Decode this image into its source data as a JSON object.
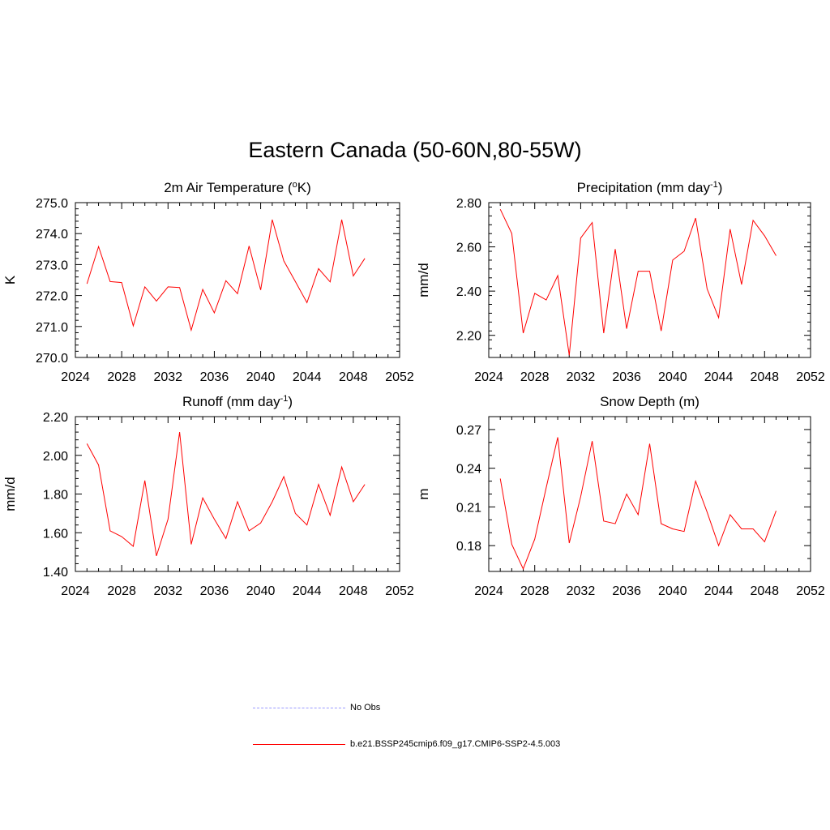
{
  "title": "Eastern Canada (50-60N,80-55W)",
  "series_color": "#ff0000",
  "legend": {
    "obs_label": "No Obs",
    "obs_color": "#9999ff",
    "model_label": "b.e21.BSSP245cmip6.f09_g17.CMIP6-SSP2-4.5.003",
    "model_color": "#ff0000"
  },
  "chart_data": [
    {
      "type": "line",
      "title": "2m Air Temperature (oK)",
      "title_parts": {
        "pre": "2m Air Temperature (",
        "sup": "o",
        "post": "K)"
      },
      "ylabel": "K",
      "xlim": [
        2024,
        2052
      ],
      "ylim": [
        270.0,
        275.0
      ],
      "xticks": [
        "2024",
        "2028",
        "2032",
        "2036",
        "2040",
        "2044",
        "2048",
        "2052"
      ],
      "yticks": [
        "270.0",
        "271.0",
        "272.0",
        "273.0",
        "274.0",
        "275.0"
      ],
      "ytick_values": [
        270,
        271,
        272,
        273,
        274,
        275
      ],
      "y_minor_step": 0.2,
      "x": [
        2025,
        2026,
        2027,
        2028,
        2029,
        2030,
        2031,
        2032,
        2033,
        2034,
        2035,
        2036,
        2037,
        2038,
        2039,
        2040,
        2041,
        2042,
        2043,
        2044,
        2045,
        2046,
        2047,
        2048,
        2049
      ],
      "series": [
        {
          "values": [
            272.38,
            273.58,
            272.45,
            272.42,
            271.02,
            272.28,
            271.82,
            272.28,
            272.26,
            270.88,
            272.2,
            271.44,
            272.48,
            272.06,
            273.6,
            272.18,
            274.45,
            273.12,
            272.45,
            271.77,
            272.87,
            272.44,
            274.45,
            272.63,
            273.2
          ]
        }
      ]
    },
    {
      "type": "line",
      "title": "Precipitation (mm day-1)",
      "title_parts": {
        "pre": "Precipitation (mm day",
        "sup": "-1",
        "post": ")"
      },
      "ylabel": "mm/d",
      "xlim": [
        2024,
        2052
      ],
      "ylim": [
        2.1,
        2.8
      ],
      "xticks": [
        "2024",
        "2028",
        "2032",
        "2036",
        "2040",
        "2044",
        "2048",
        "2052"
      ],
      "yticks": [
        "2.20",
        "2.40",
        "2.60",
        "2.80"
      ],
      "ytick_values": [
        2.2,
        2.4,
        2.6,
        2.8
      ],
      "y_minor_step": 0.04,
      "x": [
        2025,
        2026,
        2027,
        2028,
        2029,
        2030,
        2031,
        2032,
        2033,
        2034,
        2035,
        2036,
        2037,
        2038,
        2039,
        2040,
        2041,
        2042,
        2043,
        2044,
        2045,
        2046,
        2047,
        2048,
        2049
      ],
      "series": [
        {
          "values": [
            2.77,
            2.66,
            2.21,
            2.39,
            2.36,
            2.47,
            2.11,
            2.64,
            2.71,
            2.21,
            2.59,
            2.23,
            2.49,
            2.49,
            2.22,
            2.54,
            2.58,
            2.73,
            2.41,
            2.28,
            2.68,
            2.43,
            2.72,
            2.65,
            2.56
          ]
        }
      ]
    },
    {
      "type": "line",
      "title": "Runoff (mm day-1)",
      "title_parts": {
        "pre": "Runoff (mm day",
        "sup": "-1",
        "post": ")"
      },
      "ylabel": "mm/d",
      "xlim": [
        2024,
        2052
      ],
      "ylim": [
        1.4,
        2.2
      ],
      "xticks": [
        "2024",
        "2028",
        "2032",
        "2036",
        "2040",
        "2044",
        "2048",
        "2052"
      ],
      "yticks": [
        "1.40",
        "1.60",
        "1.80",
        "2.00",
        "2.20"
      ],
      "ytick_values": [
        1.4,
        1.6,
        1.8,
        2.0,
        2.2
      ],
      "y_minor_step": 0.04,
      "x": [
        2025,
        2026,
        2027,
        2028,
        2029,
        2030,
        2031,
        2032,
        2033,
        2034,
        2035,
        2036,
        2037,
        2038,
        2039,
        2040,
        2041,
        2042,
        2043,
        2044,
        2045,
        2046,
        2047,
        2048,
        2049
      ],
      "series": [
        {
          "values": [
            2.06,
            1.95,
            1.61,
            1.58,
            1.53,
            1.87,
            1.48,
            1.67,
            2.12,
            1.54,
            1.78,
            1.67,
            1.57,
            1.76,
            1.61,
            1.65,
            1.76,
            1.89,
            1.7,
            1.64,
            1.85,
            1.69,
            1.94,
            1.76,
            1.85
          ]
        }
      ]
    },
    {
      "type": "line",
      "title": "Snow Depth (m)",
      "title_parts": {
        "pre": "Snow Depth (m)",
        "sup": "",
        "post": ""
      },
      "ylabel": "m",
      "xlim": [
        2024,
        2052
      ],
      "ylim": [
        0.16,
        0.28
      ],
      "xticks": [
        "2024",
        "2028",
        "2032",
        "2036",
        "2040",
        "2044",
        "2048",
        "2052"
      ],
      "yticks": [
        "0.18",
        "0.21",
        "0.24",
        "0.27"
      ],
      "ytick_values": [
        0.18,
        0.21,
        0.24,
        0.27
      ],
      "y_minor_step": 0.01,
      "x": [
        2025,
        2026,
        2027,
        2028,
        2029,
        2030,
        2031,
        2032,
        2033,
        2034,
        2035,
        2036,
        2037,
        2038,
        2039,
        2040,
        2041,
        2042,
        2043,
        2044,
        2045,
        2046,
        2047,
        2048,
        2049
      ],
      "series": [
        {
          "values": [
            0.232,
            0.181,
            0.162,
            0.185,
            0.225,
            0.264,
            0.182,
            0.218,
            0.261,
            0.199,
            0.197,
            0.22,
            0.204,
            0.259,
            0.197,
            0.193,
            0.191,
            0.23,
            0.206,
            0.18,
            0.204,
            0.193,
            0.193,
            0.183,
            0.207
          ]
        }
      ]
    }
  ]
}
